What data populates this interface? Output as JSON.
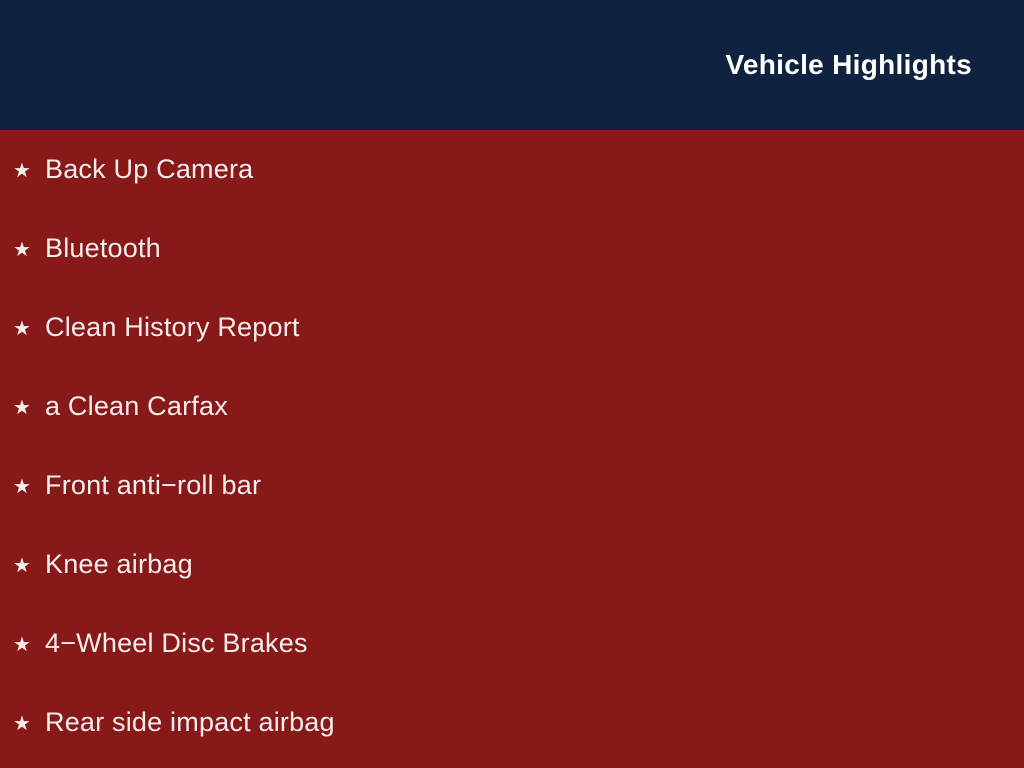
{
  "header": {
    "title": "Vehicle Highlights"
  },
  "list": {
    "star_icon": "★",
    "items": [
      {
        "label": "Back Up Camera"
      },
      {
        "label": "Bluetooth"
      },
      {
        "label": "Clean History Report"
      },
      {
        "label": "a Clean Carfax"
      },
      {
        "label": "Front anti−roll bar"
      },
      {
        "label": "Knee airbag"
      },
      {
        "label": "4−Wheel Disc Brakes"
      },
      {
        "label": "Rear side impact airbag"
      }
    ]
  },
  "colors": {
    "header_bg": "#0f2240",
    "body_bg": "#881919",
    "header_text": "#ffffff",
    "body_text": "#f6eded"
  }
}
